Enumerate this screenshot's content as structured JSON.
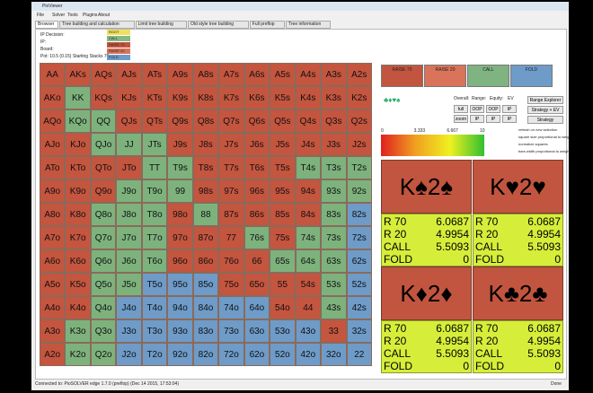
{
  "window": {
    "title": "PioViewer",
    "menu": [
      "File",
      "Solver",
      "Tools",
      "Plugins",
      "About"
    ],
    "tabs": [
      "Browser",
      "Tree building and calculation",
      "Limit tree building",
      "Old style tree building",
      "Full preflop",
      "Tree information"
    ]
  },
  "info": {
    "lines": [
      "IP Decision:",
      "IP:",
      "Board:",
      "Pot: 10.5 (0.15) Starting Stacks 70"
    ],
    "legend": [
      "ROOT",
      "CALL",
      "RAISE 70",
      "RAISE 20",
      "FOLD"
    ]
  },
  "grid": {
    "rows": [
      [
        "AA",
        "AKs",
        "AQs",
        "AJs",
        "ATs",
        "A9s",
        "A8s",
        "A7s",
        "A6s",
        "A5s",
        "A4s",
        "A3s",
        "A2s"
      ],
      [
        "AKo",
        "KK",
        "KQs",
        "KJs",
        "KTs",
        "K9s",
        "K8s",
        "K7s",
        "K6s",
        "K5s",
        "K4s",
        "K3s",
        "K2s"
      ],
      [
        "AQo",
        "KQo",
        "QQ",
        "QJs",
        "QTs",
        "Q9s",
        "Q8s",
        "Q7s",
        "Q6s",
        "Q5s",
        "Q4s",
        "Q3s",
        "Q2s"
      ],
      [
        "AJo",
        "KJo",
        "QJo",
        "JJ",
        "JTs",
        "J9s",
        "J8s",
        "J7s",
        "J6s",
        "J5s",
        "J4s",
        "J3s",
        "J2s"
      ],
      [
        "ATo",
        "KTo",
        "QTo",
        "JTo",
        "TT",
        "T9s",
        "T8s",
        "T7s",
        "T6s",
        "T5s",
        "T4s",
        "T3s",
        "T2s"
      ],
      [
        "A9o",
        "K9o",
        "Q9o",
        "J9o",
        "T9o",
        "99",
        "98s",
        "97s",
        "96s",
        "95s",
        "94s",
        "93s",
        "92s"
      ],
      [
        "A8o",
        "K8o",
        "Q8o",
        "J8o",
        "T8o",
        "98o",
        "88",
        "87s",
        "86s",
        "85s",
        "84s",
        "83s",
        "82s"
      ],
      [
        "A7o",
        "K7o",
        "Q7o",
        "J7o",
        "T7o",
        "97o",
        "87o",
        "77",
        "76s",
        "75s",
        "74s",
        "73s",
        "72s"
      ],
      [
        "A6o",
        "K6o",
        "Q6o",
        "J6o",
        "T6o",
        "96o",
        "86o",
        "76o",
        "66",
        "65s",
        "64s",
        "63s",
        "62s"
      ],
      [
        "A5o",
        "K5o",
        "Q5o",
        "J5o",
        "T5o",
        "95o",
        "85o",
        "75o",
        "65o",
        "55",
        "54s",
        "53s",
        "52s"
      ],
      [
        "A4o",
        "K4o",
        "Q4o",
        "J4o",
        "T4o",
        "94o",
        "84o",
        "74o",
        "64o",
        "54o",
        "44",
        "43s",
        "42s"
      ],
      [
        "A3o",
        "K3o",
        "Q3o",
        "J3o",
        "T3o",
        "93o",
        "83o",
        "73o",
        "63o",
        "53o",
        "43o",
        "33",
        "32s"
      ],
      [
        "A2o",
        "K2o",
        "Q2o",
        "J2o",
        "T2o",
        "92o",
        "82o",
        "72o",
        "62o",
        "52o",
        "42o",
        "32o",
        "22"
      ]
    ]
  },
  "strategy": {
    "boxes": [
      "RAISE 70",
      "RAISE 20",
      "CALL",
      "FOLD"
    ]
  },
  "toolbar": {
    "labels": [
      "Overall:",
      "Range:",
      "Equity:",
      "EV"
    ],
    "buttons": [
      "full",
      "OOP",
      "OOP",
      "IP",
      "zoom",
      "IP",
      "IP",
      "IP"
    ],
    "side_buttons": [
      "Range Explorer",
      "Strategy + EV",
      "Strategy"
    ],
    "checkboxes": [
      "refresh on new selection",
      "square size proportional to weight",
      "normalize squares",
      "bars width proportional to weight"
    ]
  },
  "scale": {
    "ticks": [
      0,
      3.333,
      6.667,
      10
    ]
  },
  "combos": [
    {
      "title": "K♠2♠",
      "rows": [
        {
          "action": "R 70",
          "ev": 6.0687
        },
        {
          "action": "R 20",
          "ev": 4.9954
        },
        {
          "action": "CALL",
          "ev": 5.5093
        },
        {
          "action": "FOLD",
          "ev": 0
        }
      ]
    },
    {
      "title": "K♥2♥",
      "rows": [
        {
          "action": "R 70",
          "ev": 6.0687
        },
        {
          "action": "R 20",
          "ev": 4.9954
        },
        {
          "action": "CALL",
          "ev": 5.5093
        },
        {
          "action": "FOLD",
          "ev": 0
        }
      ]
    },
    {
      "title": "K♦2♦",
      "rows": [
        {
          "action": "R 70",
          "ev": 6.0687
        },
        {
          "action": "R 20",
          "ev": 4.9954
        },
        {
          "action": "CALL",
          "ev": 5.5093
        },
        {
          "action": "FOLD",
          "ev": 0
        }
      ]
    },
    {
      "title": "K♣2♣",
      "rows": [
        {
          "action": "R 70",
          "ev": 6.0687
        },
        {
          "action": "R 20",
          "ev": 4.9954
        },
        {
          "action": "CALL",
          "ev": 5.5093
        },
        {
          "action": "FOLD",
          "ev": 0
        }
      ]
    }
  ],
  "status": {
    "left": "Connected to: PioSOLVER edge 1.7.0 (preflop) (Dec 14 2015, 17:53:04)",
    "right": "Done"
  }
}
